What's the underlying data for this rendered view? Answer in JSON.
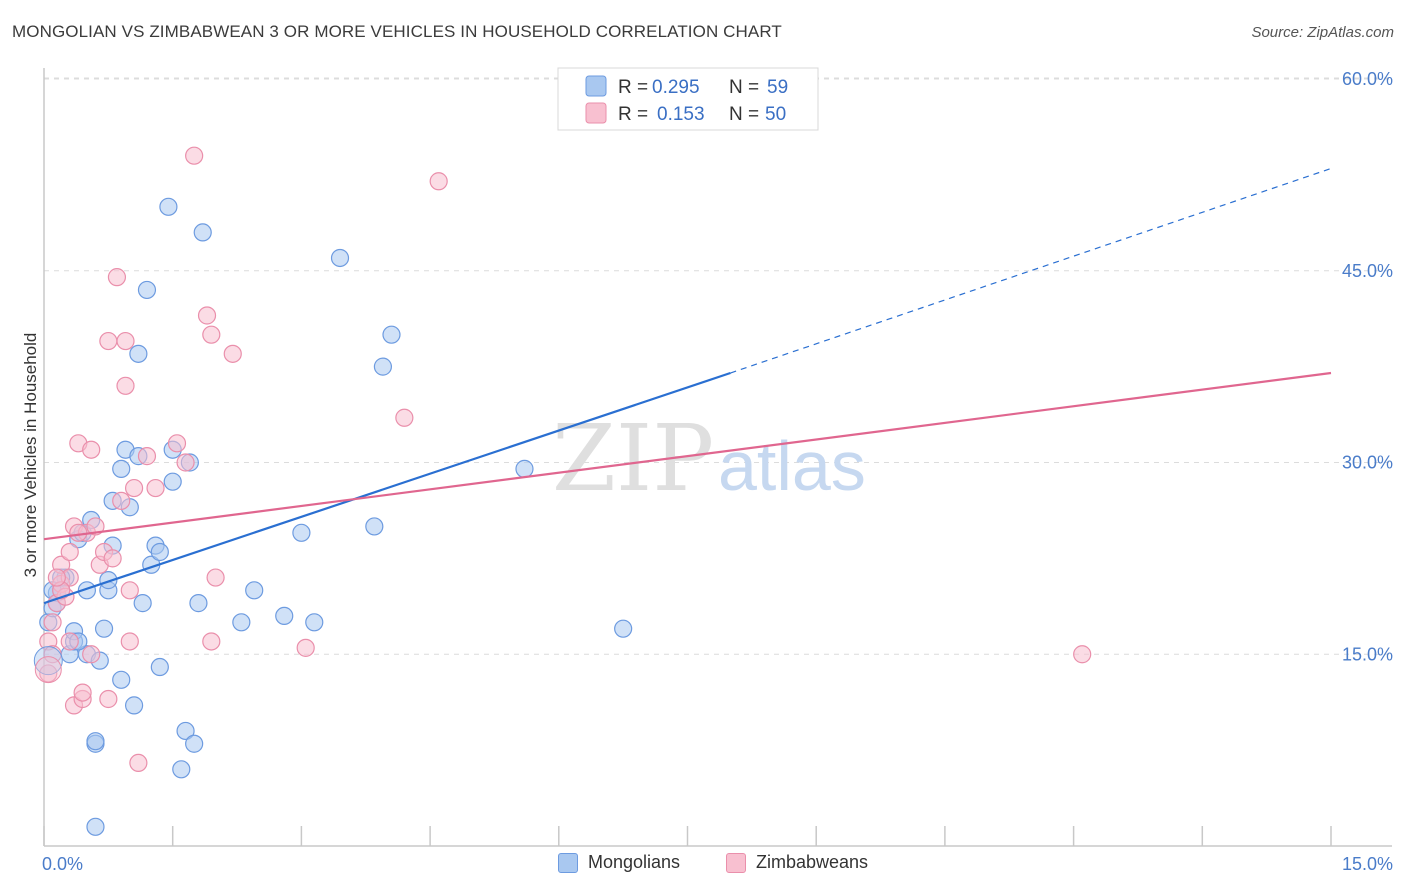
{
  "header": {
    "title": "MONGOLIAN VS ZIMBABWEAN 3 OR MORE VEHICLES IN HOUSEHOLD CORRELATION CHART",
    "source": "Source: ZipAtlas.com"
  },
  "watermark": {
    "zip": "ZIP",
    "atlas": "atlas"
  },
  "legend_top": [
    {
      "r_label": "R =",
      "r_value": "0.295",
      "n_label": "N =",
      "n_value": "59",
      "color": "#a9c8f0",
      "stroke": "#6d9be0"
    },
    {
      "r_label": "R =",
      "r_value": "0.153",
      "n_label": "N =",
      "n_value": "50",
      "color": "#f8c0d0",
      "stroke": "#ea8fab"
    }
  ],
  "legend_bottom": [
    {
      "label": "Mongolians",
      "color": "#a9c8f0",
      "stroke": "#6d9be0"
    },
    {
      "label": "Zimbabweans",
      "color": "#f8c0d0",
      "stroke": "#ea8fab"
    }
  ],
  "chart_data": {
    "type": "scatter",
    "title": "MONGOLIAN VS ZIMBABWEAN 3 OR MORE VEHICLES IN HOUSEHOLD CORRELATION CHART",
    "xlabel": "",
    "ylabel": "3 or more Vehicles in Household",
    "xlim": [
      0,
      15
    ],
    "ylim": [
      0,
      60
    ],
    "x_tick_labels": [
      {
        "value": 0,
        "label": "0.0%"
      },
      {
        "value": 15,
        "label": "15.0%"
      }
    ],
    "y_tick_labels": [
      {
        "value": 15,
        "label": "15.0%"
      },
      {
        "value": 30,
        "label": "30.0%"
      },
      {
        "value": 45,
        "label": "45.0%"
      },
      {
        "value": 60,
        "label": "60.0%"
      }
    ],
    "grid": true,
    "legend_position": "top-center",
    "series": [
      {
        "name": "Mongolians",
        "color": "#6d9be0",
        "fill": "#a9c8f0",
        "trend": {
          "x0": 0.0,
          "y0": 19.0,
          "x1": 8.0,
          "y1": 37.0,
          "dashed_to_x": 15.0,
          "dashed_to_y": 53.0,
          "line_color": "#2a6fd1"
        },
        "points": [
          [
            0.05,
            17.5
          ],
          [
            0.1,
            18.6
          ],
          [
            0.15,
            19.8
          ],
          [
            0.2,
            20.0
          ],
          [
            0.25,
            21.0
          ],
          [
            0.3,
            15.0
          ],
          [
            0.35,
            16.0
          ],
          [
            0.35,
            16.8
          ],
          [
            0.4,
            24.0
          ],
          [
            0.45,
            24.5
          ],
          [
            0.5,
            20.0
          ],
          [
            0.5,
            15.0
          ],
          [
            0.55,
            25.5
          ],
          [
            0.6,
            8.0
          ],
          [
            0.6,
            8.2
          ],
          [
            0.65,
            14.5
          ],
          [
            0.7,
            17.0
          ],
          [
            0.75,
            20.0
          ],
          [
            0.75,
            20.8
          ],
          [
            0.8,
            23.5
          ],
          [
            0.8,
            27.0
          ],
          [
            0.9,
            13.0
          ],
          [
            0.9,
            29.5
          ],
          [
            0.95,
            31.0
          ],
          [
            1.0,
            26.5
          ],
          [
            1.05,
            11.0
          ],
          [
            1.1,
            30.5
          ],
          [
            1.1,
            38.5
          ],
          [
            1.15,
            19.0
          ],
          [
            1.2,
            43.5
          ],
          [
            1.25,
            22.0
          ],
          [
            1.3,
            23.5
          ],
          [
            1.35,
            14.0
          ],
          [
            1.35,
            23.0
          ],
          [
            1.45,
            50.0
          ],
          [
            1.5,
            28.5
          ],
          [
            1.5,
            31.0
          ],
          [
            1.6,
            6.0
          ],
          [
            1.65,
            9.0
          ],
          [
            1.7,
            30.0
          ],
          [
            1.75,
            8.0
          ],
          [
            1.8,
            19.0
          ],
          [
            1.85,
            48.0
          ],
          [
            2.3,
            17.5
          ],
          [
            2.45,
            20.0
          ],
          [
            2.8,
            18.0
          ],
          [
            3.0,
            24.5
          ],
          [
            3.15,
            17.5
          ],
          [
            3.45,
            46.0
          ],
          [
            3.85,
            25.0
          ],
          [
            3.95,
            37.5
          ],
          [
            4.05,
            40.0
          ],
          [
            5.6,
            29.5
          ],
          [
            6.75,
            17.0
          ],
          [
            0.2,
            21.0
          ],
          [
            0.4,
            16.0
          ],
          [
            0.1,
            20.0
          ],
          [
            0.6,
            1.5
          ],
          [
            0.15,
            19.0
          ]
        ]
      },
      {
        "name": "Zimbabweans",
        "color": "#ea8fab",
        "fill": "#f8c0d0",
        "trend": {
          "x0": 0.0,
          "y0": 24.0,
          "x1": 15.0,
          "y1": 37.0,
          "line_color": "#e0668f"
        },
        "points": [
          [
            0.05,
            16.0
          ],
          [
            0.05,
            13.5
          ],
          [
            0.1,
            17.5
          ],
          [
            0.15,
            19.0
          ],
          [
            0.2,
            20.5
          ],
          [
            0.2,
            22.0
          ],
          [
            0.3,
            21.0
          ],
          [
            0.3,
            16.0
          ],
          [
            0.35,
            11.0
          ],
          [
            0.35,
            25.0
          ],
          [
            0.4,
            31.5
          ],
          [
            0.45,
            11.5
          ],
          [
            0.45,
            12.0
          ],
          [
            0.5,
            24.5
          ],
          [
            0.55,
            31.0
          ],
          [
            0.6,
            25.0
          ],
          [
            0.65,
            22.0
          ],
          [
            0.7,
            23.0
          ],
          [
            0.75,
            11.5
          ],
          [
            0.75,
            39.5
          ],
          [
            0.8,
            22.5
          ],
          [
            0.85,
            44.5
          ],
          [
            0.9,
            27.0
          ],
          [
            0.95,
            36.0
          ],
          [
            0.95,
            39.5
          ],
          [
            1.0,
            20.0
          ],
          [
            1.0,
            16.0
          ],
          [
            1.05,
            28.0
          ],
          [
            1.1,
            6.5
          ],
          [
            1.2,
            30.5
          ],
          [
            1.3,
            28.0
          ],
          [
            1.55,
            31.5
          ],
          [
            1.65,
            30.0
          ],
          [
            1.75,
            54.0
          ],
          [
            1.9,
            41.5
          ],
          [
            1.95,
            40.0
          ],
          [
            1.95,
            16.0
          ],
          [
            2.0,
            21.0
          ],
          [
            2.2,
            38.5
          ],
          [
            3.05,
            15.5
          ],
          [
            4.2,
            33.5
          ],
          [
            4.6,
            52.0
          ],
          [
            12.1,
            15.0
          ],
          [
            0.25,
            19.5
          ],
          [
            0.1,
            15.0
          ],
          [
            0.55,
            15.0
          ],
          [
            0.3,
            23.0
          ],
          [
            0.4,
            24.5
          ],
          [
            0.2,
            20.0
          ],
          [
            0.15,
            21.0
          ]
        ]
      }
    ]
  }
}
